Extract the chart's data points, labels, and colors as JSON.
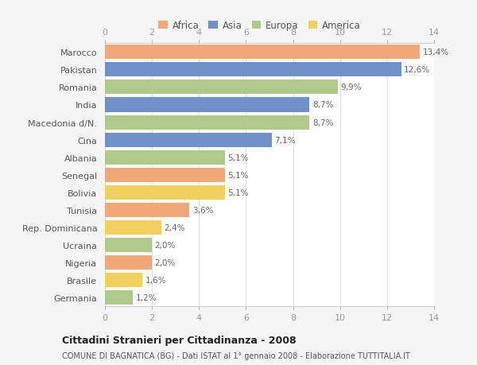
{
  "categories": [
    "Germania",
    "Brasile",
    "Nigeria",
    "Ucraina",
    "Rep. Dominicana",
    "Tunisia",
    "Bolivia",
    "Senegal",
    "Albania",
    "Cina",
    "Macedonia d/N.",
    "India",
    "Romania",
    "Pakistan",
    "Marocco"
  ],
  "values": [
    1.2,
    1.6,
    2.0,
    2.0,
    2.4,
    3.6,
    5.1,
    5.1,
    5.1,
    7.1,
    8.7,
    8.7,
    9.9,
    12.6,
    13.4
  ],
  "labels": [
    "1,2%",
    "1,6%",
    "2,0%",
    "2,0%",
    "2,4%",
    "3,6%",
    "5,1%",
    "5,1%",
    "5,1%",
    "7,1%",
    "8,7%",
    "8,7%",
    "9,9%",
    "12,6%",
    "13,4%"
  ],
  "colors": [
    "#aec98a",
    "#f0d060",
    "#f0a878",
    "#aec98a",
    "#f0d060",
    "#f0a878",
    "#f0d060",
    "#f0a878",
    "#aec98a",
    "#7090c8",
    "#aec98a",
    "#7090c8",
    "#aec98a",
    "#7090c8",
    "#f0a878"
  ],
  "legend": [
    {
      "label": "Africa",
      "color": "#f0a878"
    },
    {
      "label": "Asia",
      "color": "#7090c8"
    },
    {
      "label": "Europa",
      "color": "#aec98a"
    },
    {
      "label": "America",
      "color": "#f0d060"
    }
  ],
  "title1": "Cittadini Stranieri per Cittadinanza - 2008",
  "title2": "COMUNE DI BAGNATICA (BG) - Dati ISTAT al 1° gennaio 2008 - Elaborazione TUTTITALIA.IT",
  "xlim": [
    0,
    14
  ],
  "xticks": [
    0,
    2,
    4,
    6,
    8,
    10,
    12,
    14
  ],
  "outer_bg_color": "#f5f5f5",
  "plot_bg_color": "#ffffff"
}
